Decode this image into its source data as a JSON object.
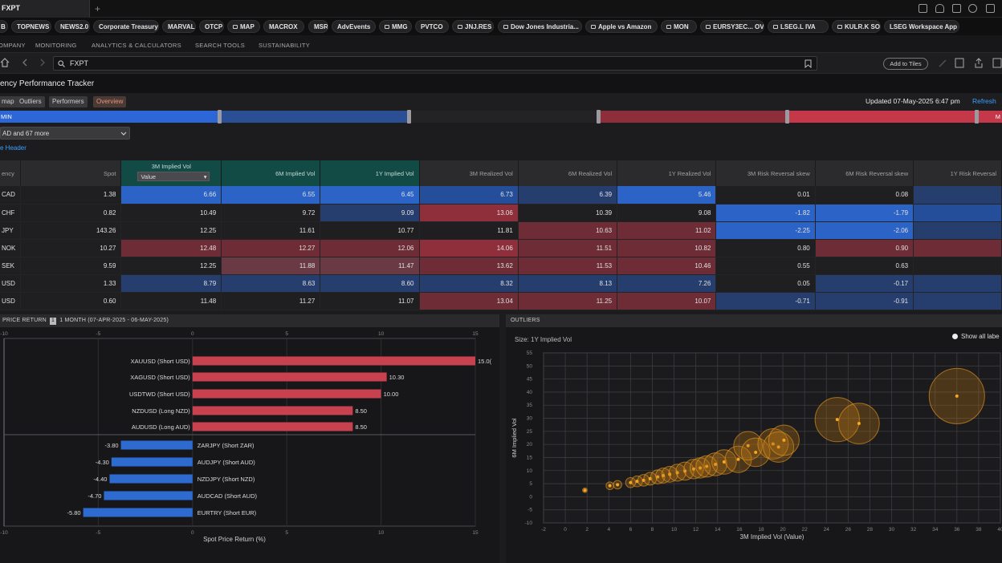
{
  "window": {
    "tab_title": "FXPT",
    "new_tab": "+"
  },
  "chips": [
    {
      "label": "B",
      "locked": false
    },
    {
      "label": "TOPNEWS",
      "locked": false
    },
    {
      "label": "NEWS2.0",
      "locked": false
    },
    {
      "label": "Corporate Treasury",
      "locked": false
    },
    {
      "label": "MARVAL",
      "locked": false
    },
    {
      "label": "OTCP",
      "locked": false
    },
    {
      "label": "MAP",
      "locked": true
    },
    {
      "label": "MACROX",
      "locked": false
    },
    {
      "label": "MSR",
      "locked": false
    },
    {
      "label": "AdvEvents",
      "locked": false
    },
    {
      "label": "MMG",
      "locked": true
    },
    {
      "label": "PVTCO",
      "locked": false
    },
    {
      "label": "JNJ.RES",
      "locked": true
    },
    {
      "label": "Dow Jones Industria...",
      "locked": true
    },
    {
      "label": "Apple vs Amazon",
      "locked": true
    },
    {
      "label": "MON",
      "locked": true
    },
    {
      "label": "EURSY3EC... OV",
      "locked": true
    },
    {
      "label": "LSEG.L IVA",
      "locked": true
    },
    {
      "label": "KULR.K SOV",
      "locked": true
    },
    {
      "label": "LSEG Workspace App",
      "locked": false
    }
  ],
  "nav": [
    "OMPANY",
    "MONITORING",
    "ANALYTICS & CALCULATORS",
    "SEARCH TOOLS",
    "SUSTAINABILITY"
  ],
  "address": {
    "value": "FXPT",
    "add_to_tiles": "Add to Tiles"
  },
  "app_title": "ency Performance Tracker",
  "view_tabs": [
    "map",
    "Outliers",
    "Performers",
    "Overview"
  ],
  "updated": "Updated 07-May-2025 6:47 pm",
  "refresh": "Refresh",
  "scale_labels": {
    "left": "MIN",
    "right": "M"
  },
  "filter": "AD and 67 more",
  "hide_header": "e Header",
  "table": {
    "value_select": "Value",
    "columns": [
      "ency",
      "Spot",
      "3M Implied Vol",
      "6M Implied Vol",
      "1Y Implied Vol",
      "3M Realized Vol",
      "6M Realized Vol",
      "1Y Realized Vol",
      "3M Risk Reversal skew",
      "6M Risk Reversal skew",
      "1Y Risk Reversal"
    ],
    "rows": [
      {
        "ccy": "CAD",
        "cells": [
          "1.38",
          "6.66",
          "6.55",
          "6.45",
          "6.73",
          "6.39",
          "5.46",
          "0.01",
          "0.08",
          ""
        ]
      },
      {
        "ccy": "CHF",
        "cells": [
          "0.82",
          "10.49",
          "9.72",
          "9.09",
          "13.06",
          "10.39",
          "9.08",
          "-1.82",
          "-1.79",
          ""
        ]
      },
      {
        "ccy": "JPY",
        "cells": [
          "143.26",
          "12.25",
          "11.61",
          "10.77",
          "11.81",
          "10.63",
          "11.02",
          "-2.25",
          "-2.06",
          ""
        ]
      },
      {
        "ccy": "NOK",
        "cells": [
          "10.27",
          "12.48",
          "12.27",
          "12.06",
          "14.06",
          "11.51",
          "10.82",
          "0.80",
          "0.90",
          ""
        ]
      },
      {
        "ccy": "SEK",
        "cells": [
          "9.59",
          "12.25",
          "11.88",
          "11.47",
          "13.62",
          "11.53",
          "10.46",
          "0.55",
          "0.63",
          ""
        ]
      },
      {
        "ccy": "USD",
        "cells": [
          "1.33",
          "8.79",
          "8.63",
          "8.60",
          "8.32",
          "8.13",
          "7.26",
          "0.05",
          "-0.17",
          ""
        ]
      },
      {
        "ccy": "USD",
        "cells": [
          "0.60",
          "11.48",
          "11.27",
          "11.07",
          "13.04",
          "11.25",
          "10.07",
          "-0.71",
          "-0.91",
          ""
        ]
      }
    ],
    "heat": [
      [
        "",
        "b1",
        "b1",
        "b1",
        "b2",
        "b3",
        "b1",
        "",
        "",
        "b3"
      ],
      [
        "",
        "",
        "",
        "b3",
        "r1",
        "",
        "",
        "b1",
        "b1",
        "b2"
      ],
      [
        "",
        "",
        "",
        "",
        "",
        "r2",
        "r2",
        "b1",
        "b1",
        "b3"
      ],
      [
        "",
        "r2",
        "r2",
        "r2",
        "r1",
        "r2",
        "r2",
        "",
        "r2",
        "r2"
      ],
      [
        "",
        "",
        "r3",
        "r3",
        "r2",
        "r2",
        "r2",
        "",
        "",
        ""
      ],
      [
        "",
        "b3",
        "b3",
        "b3",
        "b3",
        "b3",
        "b3",
        "",
        "b3",
        "b3"
      ],
      [
        "",
        "",
        "",
        "",
        "r2",
        "r2",
        "r2",
        "b3",
        "b3",
        "b3"
      ]
    ]
  },
  "bar_panel": {
    "header": "PRICE RETURN",
    "period_icon": "1",
    "period": "1 MONTH (07-APR-2025 - 06-MAY-2025)"
  },
  "scatter_panel": {
    "header": "OUTLIERS",
    "size_label": "Size: 1Y Implied Vol",
    "show_labels": "Show all labe"
  },
  "chart_data": [
    {
      "type": "bar",
      "orientation": "horizontal",
      "xlabel": "Spot Price Return (%)",
      "xlim": [
        -10,
        15
      ],
      "xticks": [
        "-10",
        "-10",
        "-5",
        "0",
        "5",
        "10",
        "15"
      ],
      "categories": [
        "XAUUSD (Short USD)",
        "XAGUSD (Short USD)",
        "USDTWD (Short USD)",
        "NZDUSD (Long NZD)",
        "AUDUSD (Long AUD)",
        "ZARJPY (Short ZAR)",
        "AUDJPY (Short AUD)",
        "NZDJPY (Short NZD)",
        "AUDCAD (Short AUD)",
        "EURTRY (Short EUR)"
      ],
      "values": [
        15.0,
        10.3,
        10.0,
        8.5,
        8.5,
        -3.8,
        -4.3,
        -4.4,
        -4.7,
        -5.8
      ],
      "value_labels": [
        "15.0(",
        "10.30",
        "10.00",
        "8.50",
        "8.50",
        "-3.80",
        "-4.30",
        "-4.40",
        "-4.70",
        "-5.80"
      ],
      "colors": {
        "positive": "#c8414f",
        "negative": "#2d6bd1"
      }
    },
    {
      "type": "scatter",
      "title": "Size: 1Y Implied Vol",
      "xlabel": "3M Implied Vol (Value)",
      "ylabel": "6M Implied Vol",
      "xlim": [
        -2,
        40
      ],
      "ylim": [
        -10,
        55
      ],
      "x_ticks": [
        "-2",
        "0",
        "2",
        "4",
        "6",
        "8",
        "10",
        "12",
        "14",
        "16",
        "18",
        "20",
        "22",
        "24",
        "26",
        "28",
        "30",
        "32",
        "34",
        "36",
        "38",
        "40"
      ],
      "y_ticks": [
        "55",
        "50",
        "45",
        "40",
        "35",
        "30",
        "25",
        "20",
        "15",
        "10",
        "5",
        "0",
        "-5",
        "-10"
      ],
      "points": [
        {
          "x": 1.8,
          "y": 2.5,
          "s": 2.5
        },
        {
          "x": 4.1,
          "y": 4.2,
          "s": 4.2
        },
        {
          "x": 4.8,
          "y": 4.6,
          "s": 4.6
        },
        {
          "x": 6.0,
          "y": 5.4,
          "s": 5.4
        },
        {
          "x": 6.6,
          "y": 5.9,
          "s": 5.9
        },
        {
          "x": 7.2,
          "y": 6.3,
          "s": 6.3
        },
        {
          "x": 7.8,
          "y": 6.9,
          "s": 6.9
        },
        {
          "x": 8.5,
          "y": 7.6,
          "s": 7.6
        },
        {
          "x": 9.0,
          "y": 8.1,
          "s": 8.1
        },
        {
          "x": 9.6,
          "y": 8.6,
          "s": 8.6
        },
        {
          "x": 10.3,
          "y": 9.2,
          "s": 9.2
        },
        {
          "x": 11.0,
          "y": 9.8,
          "s": 9.8
        },
        {
          "x": 11.8,
          "y": 10.6,
          "s": 10.6
        },
        {
          "x": 12.4,
          "y": 11.0,
          "s": 11.0
        },
        {
          "x": 13.0,
          "y": 11.6,
          "s": 11.6
        },
        {
          "x": 13.8,
          "y": 12.4,
          "s": 12.4
        },
        {
          "x": 14.6,
          "y": 13.3,
          "s": 13.3
        },
        {
          "x": 15.9,
          "y": 14.3,
          "s": 14.3
        },
        {
          "x": 16.8,
          "y": 19.5,
          "s": 15.5
        },
        {
          "x": 17.5,
          "y": 17.0,
          "s": 15.5
        },
        {
          "x": 19.1,
          "y": 20.2,
          "s": 16.5
        },
        {
          "x": 19.6,
          "y": 19.0,
          "s": 16.5
        },
        {
          "x": 20.1,
          "y": 21.6,
          "s": 16.5
        },
        {
          "x": 25.0,
          "y": 29.5,
          "s": 24.0
        },
        {
          "x": 27.0,
          "y": 28.0,
          "s": 22.0
        },
        {
          "x": 36.0,
          "y": 38.5,
          "s": 30.0
        }
      ]
    }
  ]
}
